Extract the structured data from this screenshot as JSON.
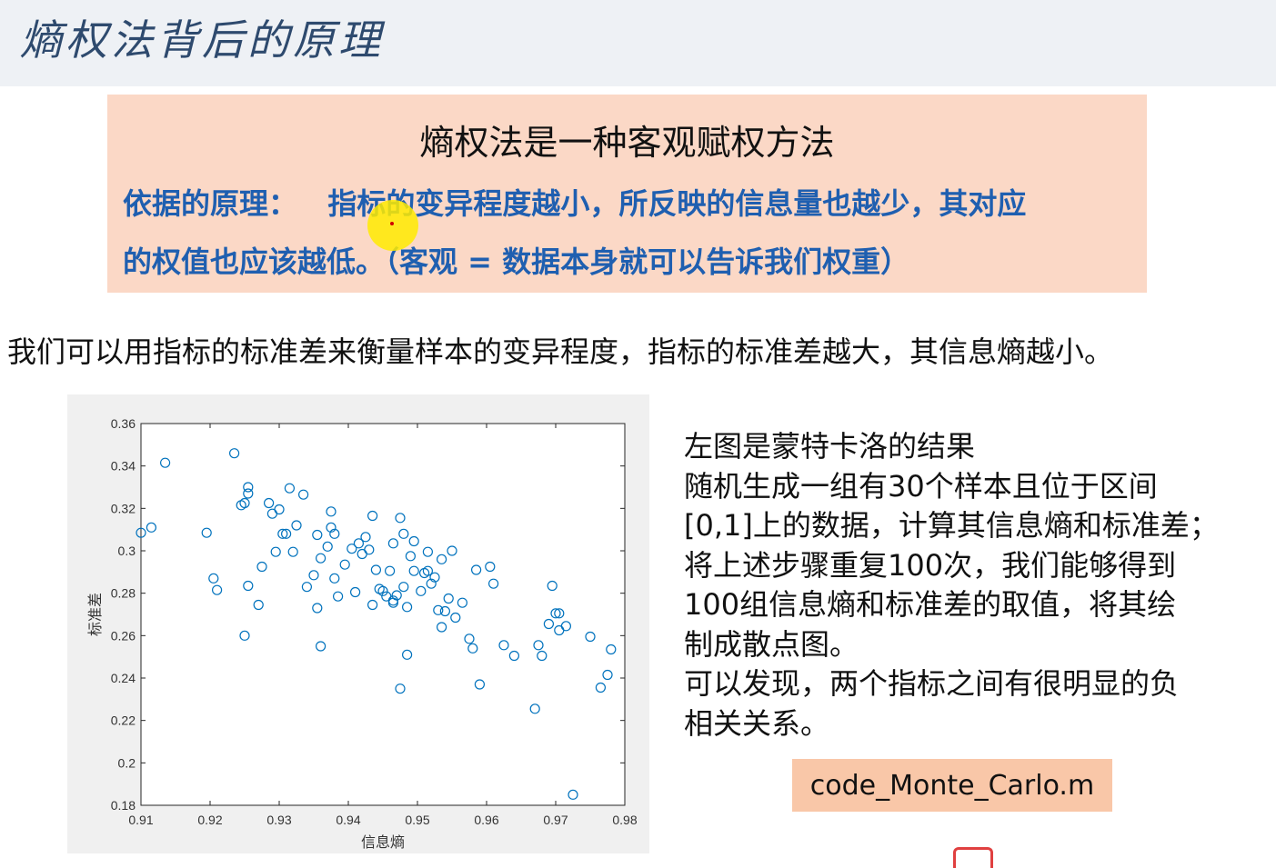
{
  "slide": {
    "title": "熵权法背后的原理",
    "box_heading": "熵权法是一种客观赋权方法",
    "box_line1": "依据的原理：   指标的变异程度越小，所反映的信息量也越少，其对应",
    "box_line2": "的权值也应该越低。（客观 = 数据本身就可以告诉我们权重）",
    "subtitle": "我们可以用指标的标准差来衡量样本的变异程度，指标的标准差越大，其信息熵越小。",
    "description": [
      "左图是蒙特卡洛的结果",
      "随机生成一组有30个样本且位于区间",
      "[0,1]上的数据，计算其信息熵和标准差；",
      "将上述步骤重复100次，我们能够得到",
      "100组信息熵和标准差的取值，将其绘",
      "制成散点图。",
      "可以发现，两个指标之间有很明显的负",
      "相关关系。"
    ],
    "code_file": "code_Monte_Carlo.m"
  },
  "colors": {
    "title": "#2e4a6e",
    "box_bg": "#fbd8c6",
    "box_text": "#1f5fb0",
    "marker": "#0072bd",
    "badge_bg": "#f9c7a8"
  },
  "chart_data": {
    "type": "scatter",
    "xlabel": "信息熵",
    "ylabel": "标准差",
    "xlim": [
      0.91,
      0.98
    ],
    "ylim": [
      0.18,
      0.36
    ],
    "xticks": [
      "0.91",
      "0.92",
      "0.93",
      "0.94",
      "0.95",
      "0.96",
      "0.97",
      "0.98"
    ],
    "yticks": [
      "0.18",
      "0.2",
      "0.22",
      "0.24",
      "0.26",
      "0.28",
      "0.3",
      "0.32",
      "0.34",
      "0.36"
    ],
    "marker": "circle-open",
    "grid": false,
    "points": [
      [
        0.9135,
        0.3415
      ],
      [
        0.9235,
        0.346
      ],
      [
        0.91,
        0.3085
      ],
      [
        0.9115,
        0.311
      ],
      [
        0.9195,
        0.3085
      ],
      [
        0.9205,
        0.287
      ],
      [
        0.921,
        0.2815
      ],
      [
        0.9245,
        0.3215
      ],
      [
        0.925,
        0.3225
      ],
      [
        0.9255,
        0.33
      ],
      [
        0.9255,
        0.327
      ],
      [
        0.925,
        0.26
      ],
      [
        0.9255,
        0.2835
      ],
      [
        0.927,
        0.2745
      ],
      [
        0.9275,
        0.2925
      ],
      [
        0.9285,
        0.3225
      ],
      [
        0.929,
        0.3175
      ],
      [
        0.9295,
        0.2995
      ],
      [
        0.93,
        0.3195
      ],
      [
        0.9305,
        0.308
      ],
      [
        0.931,
        0.308
      ],
      [
        0.9315,
        0.3295
      ],
      [
        0.932,
        0.2995
      ],
      [
        0.9325,
        0.312
      ],
      [
        0.9335,
        0.3265
      ],
      [
        0.934,
        0.283
      ],
      [
        0.935,
        0.2885
      ],
      [
        0.9355,
        0.3075
      ],
      [
        0.9355,
        0.273
      ],
      [
        0.936,
        0.255
      ],
      [
        0.936,
        0.2965
      ],
      [
        0.937,
        0.302
      ],
      [
        0.9375,
        0.311
      ],
      [
        0.9375,
        0.3185
      ],
      [
        0.938,
        0.308
      ],
      [
        0.938,
        0.287
      ],
      [
        0.9385,
        0.2785
      ],
      [
        0.9395,
        0.2935
      ],
      [
        0.9405,
        0.301
      ],
      [
        0.941,
        0.2805
      ],
      [
        0.9415,
        0.3035
      ],
      [
        0.942,
        0.2985
      ],
      [
        0.9425,
        0.3065
      ],
      [
        0.943,
        0.3005
      ],
      [
        0.9435,
        0.3165
      ],
      [
        0.9435,
        0.2745
      ],
      [
        0.944,
        0.291
      ],
      [
        0.9445,
        0.282
      ],
      [
        0.945,
        0.281
      ],
      [
        0.9455,
        0.2785
      ],
      [
        0.9465,
        0.2755
      ],
      [
        0.947,
        0.279
      ],
      [
        0.946,
        0.2905
      ],
      [
        0.9465,
        0.3035
      ],
      [
        0.9475,
        0.235
      ],
      [
        0.9475,
        0.3155
      ],
      [
        0.948,
        0.308
      ],
      [
        0.948,
        0.283
      ],
      [
        0.9485,
        0.2735
      ],
      [
        0.9485,
        0.251
      ],
      [
        0.949,
        0.2975
      ],
      [
        0.9495,
        0.3045
      ],
      [
        0.9505,
        0.281
      ],
      [
        0.951,
        0.2895
      ],
      [
        0.9515,
        0.2905
      ],
      [
        0.9515,
        0.2995
      ],
      [
        0.952,
        0.2845
      ],
      [
        0.9525,
        0.2875
      ],
      [
        0.953,
        0.272
      ],
      [
        0.9535,
        0.296
      ],
      [
        0.9535,
        0.264
      ],
      [
        0.954,
        0.2715
      ],
      [
        0.9545,
        0.2775
      ],
      [
        0.955,
        0.3
      ],
      [
        0.9555,
        0.2685
      ],
      [
        0.9565,
        0.2755
      ],
      [
        0.9575,
        0.2585
      ],
      [
        0.958,
        0.254
      ],
      [
        0.9585,
        0.291
      ],
      [
        0.959,
        0.237
      ],
      [
        0.9605,
        0.2925
      ],
      [
        0.961,
        0.2845
      ],
      [
        0.9625,
        0.2555
      ],
      [
        0.964,
        0.2505
      ],
      [
        0.967,
        0.2255
      ],
      [
        0.9675,
        0.2555
      ],
      [
        0.968,
        0.2505
      ],
      [
        0.969,
        0.2655
      ],
      [
        0.9695,
        0.2835
      ],
      [
        0.97,
        0.2705
      ],
      [
        0.9705,
        0.2625
      ],
      [
        0.9705,
        0.2705
      ],
      [
        0.9715,
        0.2645
      ],
      [
        0.9725,
        0.185
      ],
      [
        0.975,
        0.2595
      ],
      [
        0.9765,
        0.2355
      ],
      [
        0.9775,
        0.2415
      ],
      [
        0.978,
        0.2535
      ],
      [
        0.9465,
        0.2765
      ],
      [
        0.9495,
        0.2905
      ]
    ]
  }
}
